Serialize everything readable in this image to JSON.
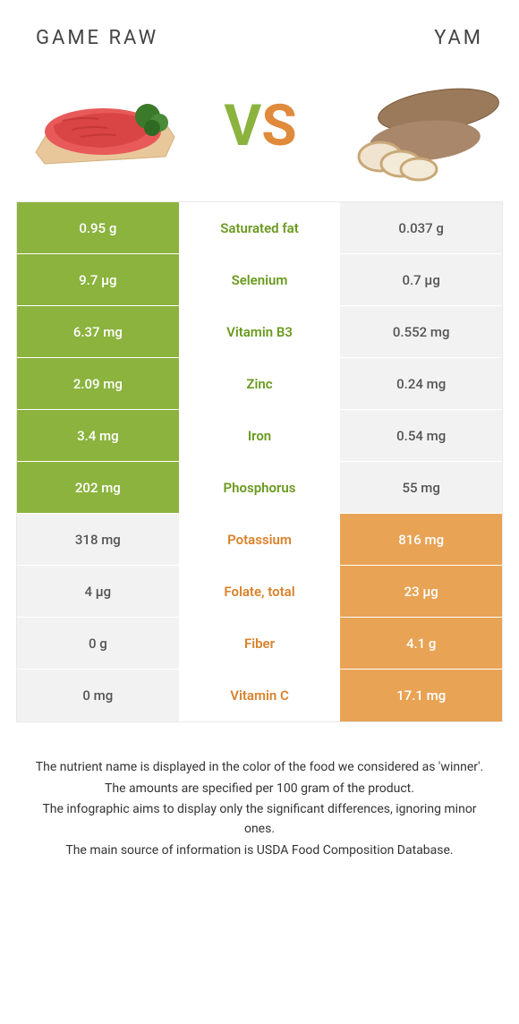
{
  "titles": {
    "left": "Game raw",
    "right": "Yam"
  },
  "vs": {
    "v": "V",
    "s": "S"
  },
  "colors": {
    "left_win_bg": "#8bb33e",
    "right_win_bg": "#e8a355",
    "lose_bg": "#f2f2f2",
    "mid_green": "#6a9a1f",
    "mid_orange": "#d9822b"
  },
  "rows": [
    {
      "left": "0.95 g",
      "label": "Saturated fat",
      "right": "0.037 g",
      "winner": "left"
    },
    {
      "left": "9.7 µg",
      "label": "Selenium",
      "right": "0.7 µg",
      "winner": "left"
    },
    {
      "left": "6.37 mg",
      "label": "Vitamin B3",
      "right": "0.552 mg",
      "winner": "left"
    },
    {
      "left": "2.09 mg",
      "label": "Zinc",
      "right": "0.24 mg",
      "winner": "left"
    },
    {
      "left": "3.4 mg",
      "label": "Iron",
      "right": "0.54 mg",
      "winner": "left"
    },
    {
      "left": "202 mg",
      "label": "Phosphorus",
      "right": "55 mg",
      "winner": "left"
    },
    {
      "left": "318 mg",
      "label": "Potassium",
      "right": "816 mg",
      "winner": "right"
    },
    {
      "left": "4 µg",
      "label": "Folate, total",
      "right": "23 µg",
      "winner": "right"
    },
    {
      "left": "0 g",
      "label": "Fiber",
      "right": "4.1 g",
      "winner": "right"
    },
    {
      "left": "0 mg",
      "label": "Vitamin C",
      "right": "17.1 mg",
      "winner": "right"
    }
  ],
  "notes": [
    "The nutrient name is displayed in the color of the food we considered as 'winner'.",
    "The amounts are specified per 100 gram of the product.",
    "The infographic aims to display only the significant differences, ignoring minor ones.",
    "The main source of information is USDA Food Composition Database."
  ]
}
